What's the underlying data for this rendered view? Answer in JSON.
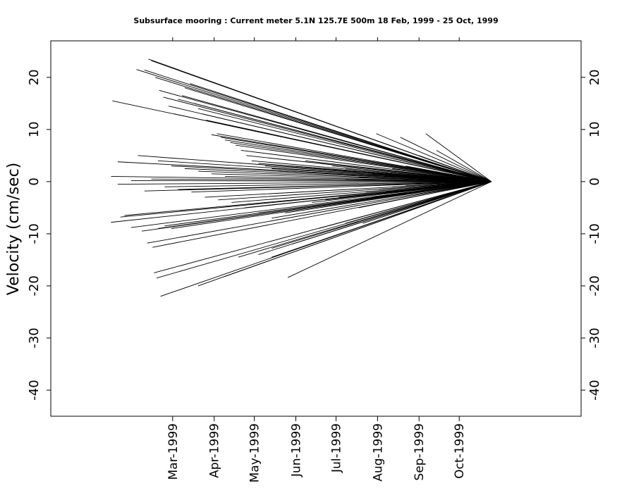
{
  "chart_data": {
    "type": "line",
    "subtype": "current vector stick plot",
    "title": "Subsurface mooring : Current meter  5.1N 125.7E   500m  18 Feb, 1999 - 25 Oct, 1999",
    "ylabel": "Velocity (cm/sec)",
    "xlabel": "",
    "ylim": [
      -45,
      27
    ],
    "xlim": [
      "1998-11-30",
      "1999-12-31"
    ],
    "y_ticks": [
      "20",
      "10",
      "0",
      "-10",
      "-20",
      "-30",
      "-40"
    ],
    "y_tick_values": [
      20,
      10,
      0,
      -10,
      -20,
      -30,
      -40
    ],
    "x_ticks": [
      "Mar-1999",
      "Apr-1999",
      "May-1999",
      "Jun-1999",
      "Jul-1999",
      "Aug-1999",
      "Sep-1999",
      "Oct-1999"
    ],
    "x_tick_dates": [
      "1999-03-01",
      "1999-04-01",
      "1999-05-01",
      "1999-06-01",
      "1999-07-01",
      "1999-08-01",
      "1999-09-01",
      "1999-10-01"
    ],
    "grid": false,
    "legend": "none",
    "line_color": "#000000",
    "series": [
      {
        "values": [
          [
            -34,
            15.5
          ],
          [
            -16,
            21.5
          ],
          [
            -10,
            21.4
          ],
          [
            -7,
            23.5
          ],
          [
            -5,
            23.2
          ],
          [
            -2,
            20
          ],
          [
            1,
            17.5
          ],
          [
            4,
            16.2
          ],
          [
            8,
            14.5
          ],
          [
            12,
            13
          ],
          [
            15,
            15.8
          ],
          [
            18,
            16.5
          ],
          [
            20,
            18
          ],
          [
            24,
            18.8
          ],
          [
            27,
            15
          ],
          [
            30,
            14
          ],
          [
            33,
            13
          ],
          [
            36,
            11.8
          ],
          [
            40,
            9
          ],
          [
            44,
            9.2
          ],
          [
            47,
            8.5
          ],
          [
            50,
            8
          ],
          [
            54,
            7.5
          ],
          [
            58,
            7
          ],
          [
            62,
            6
          ],
          [
            66,
            5
          ],
          [
            70,
            4
          ],
          [
            75,
            3.5
          ],
          [
            80,
            3
          ],
          [
            85,
            2.5
          ],
          [
            90,
            2
          ],
          [
            100,
            3
          ],
          [
            110,
            4
          ],
          [
            120,
            3.5
          ],
          [
            130,
            3
          ],
          [
            140,
            2.5
          ],
          [
            150,
            2
          ],
          [
            160,
            1.5
          ],
          [
            170,
            1.2
          ],
          [
            180,
            1
          ],
          [
            -30,
            3.8
          ],
          [
            -15,
            5
          ],
          [
            0,
            4
          ],
          [
            10,
            3
          ],
          [
            20,
            2.5
          ],
          [
            30,
            2
          ],
          [
            40,
            1.5
          ],
          [
            50,
            1
          ],
          [
            -35,
            1
          ],
          [
            -20,
            0.2
          ],
          [
            -5,
            0.5
          ],
          [
            -30,
            -0.5
          ],
          [
            -10,
            -1.8
          ],
          [
            5,
            -1
          ],
          [
            15,
            -1.5
          ],
          [
            25,
            -2
          ],
          [
            35,
            -3
          ],
          [
            45,
            -3.5
          ],
          [
            55,
            -4
          ],
          [
            65,
            -5
          ],
          [
            75,
            -6
          ],
          [
            85,
            -7
          ],
          [
            95,
            -6
          ],
          [
            105,
            -5
          ],
          [
            115,
            -4
          ],
          [
            125,
            -3.5
          ],
          [
            135,
            -3
          ],
          [
            145,
            -2.5
          ],
          [
            155,
            -2
          ],
          [
            165,
            -1.5
          ],
          [
            175,
            -1
          ],
          [
            185,
            -0.8
          ],
          [
            -35,
            -7.8
          ],
          [
            -28,
            -6.8
          ],
          [
            -25,
            -6.5
          ],
          [
            -20,
            -8.8
          ],
          [
            -12,
            -9.5
          ],
          [
            -8,
            -11.8
          ],
          [
            -4,
            -12.6
          ],
          [
            0,
            -9
          ],
          [
            5,
            -8.5
          ],
          [
            10,
            -9
          ],
          [
            -3,
            -17.5
          ],
          [
            -1,
            -18.5
          ],
          [
            2,
            -22
          ],
          [
            30,
            -20
          ],
          [
            50,
            -18.2
          ],
          [
            60,
            -14.5
          ],
          [
            75,
            -14
          ],
          [
            85,
            -12.8
          ],
          [
            97,
            -18.4
          ],
          [
            85,
            -14.5
          ],
          [
            100,
            -12
          ],
          [
            120,
            -9
          ],
          [
            140,
            -8
          ],
          [
            153,
            -8
          ],
          [
            150,
            -5
          ],
          [
            160,
            -3
          ],
          [
            170,
            -2
          ],
          [
            163,
            9.2
          ],
          [
            181,
            8.5
          ],
          [
            200,
            9.2
          ],
          [
            208,
            6
          ],
          [
            195,
            5
          ],
          [
            185,
            3
          ],
          [
            175,
            2.5
          ],
          [
            165,
            1.5
          ],
          [
            150,
            0.8
          ],
          [
            140,
            0.5
          ]
        ]
      }
    ]
  }
}
